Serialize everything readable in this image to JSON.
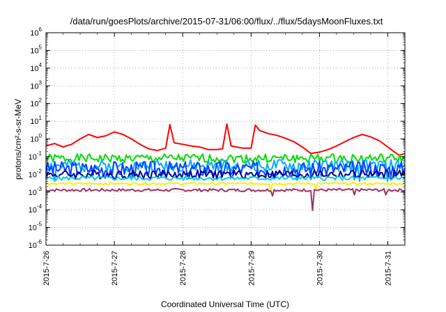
{
  "chart_data": {
    "type": "line",
    "title": "/data/run/goesPlots/archive/2015-07-31/06:00/flux/../flux/5daysMoonFluxes.txt",
    "xlabel": "Coordinated Universal Time (UTC)",
    "ylabel": "protons/cm²-s-sr-MeV",
    "y_scale": "log",
    "ylim": [
      1e-06,
      1000000.0
    ],
    "y_ticks": [
      {
        "base": "10",
        "exp": "-6",
        "value": 1e-06
      },
      {
        "base": "10",
        "exp": "-5",
        "value": 1e-05
      },
      {
        "base": "10",
        "exp": "-4",
        "value": 0.0001
      },
      {
        "base": "10",
        "exp": "-3",
        "value": 0.001
      },
      {
        "base": "10",
        "exp": "-2",
        "value": 0.01
      },
      {
        "base": "10",
        "exp": "-1",
        "value": 0.1
      },
      {
        "base": "10",
        "exp": "0",
        "value": 1
      },
      {
        "base": "10",
        "exp": "1",
        "value": 10
      },
      {
        "base": "10",
        "exp": "2",
        "value": 100
      },
      {
        "base": "10",
        "exp": "3",
        "value": 1000
      },
      {
        "base": "10",
        "exp": "4",
        "value": 10000
      },
      {
        "base": "10",
        "exp": "5",
        "value": 100000
      },
      {
        "base": "10",
        "exp": "6",
        "value": 1000000
      }
    ],
    "xlim": [
      "2015-07-26T00:00",
      "2015-07-31T06:00"
    ],
    "x_ticks": [
      {
        "label": "2015-7-26",
        "value": "2015-07-26T00:00"
      },
      {
        "label": "2015-7-27",
        "value": "2015-07-27T00:00"
      },
      {
        "label": "2015-7-28",
        "value": "2015-07-28T00:00"
      },
      {
        "label": "2015-7-29",
        "value": "2015-07-29T00:00"
      },
      {
        "label": "2015-7-30",
        "value": "2015-07-30T00:00"
      },
      {
        "label": "2015-7-31",
        "value": "2015-07-31T00:00"
      }
    ],
    "grid": true,
    "series": [
      {
        "color": "#ff0000",
        "points": [
          [
            "2015-07-26T00:00",
            0.4
          ],
          [
            "2015-07-26T03:00",
            0.55
          ],
          [
            "2015-07-26T06:00",
            0.35
          ],
          [
            "2015-07-26T09:00",
            0.5
          ],
          [
            "2015-07-26T12:00",
            1.0
          ],
          [
            "2015-07-26T15:00",
            1.8
          ],
          [
            "2015-07-26T18:00",
            1.2
          ],
          [
            "2015-07-26T21:00",
            1.5
          ],
          [
            "2015-07-27T00:00",
            2.5
          ],
          [
            "2015-07-27T03:00",
            1.8
          ],
          [
            "2015-07-27T06:00",
            1.0
          ],
          [
            "2015-07-27T09:00",
            0.5
          ],
          [
            "2015-07-27T12:00",
            0.28
          ],
          [
            "2015-07-27T15:00",
            0.22
          ],
          [
            "2015-07-27T18:00",
            0.3
          ],
          [
            "2015-07-27T19:30",
            6.5
          ],
          [
            "2015-07-27T21:00",
            0.6
          ],
          [
            "2015-07-28T00:00",
            0.5
          ],
          [
            "2015-07-28T03:00",
            0.4
          ],
          [
            "2015-07-28T06:00",
            0.35
          ],
          [
            "2015-07-28T09:00",
            0.25
          ],
          [
            "2015-07-28T12:00",
            0.25
          ],
          [
            "2015-07-28T14:00",
            0.28
          ],
          [
            "2015-07-28T15:30",
            7.0
          ],
          [
            "2015-07-28T17:00",
            0.4
          ],
          [
            "2015-07-28T19:00",
            0.35
          ],
          [
            "2015-07-28T21:00",
            0.3
          ],
          [
            "2015-07-29T00:00",
            0.3
          ],
          [
            "2015-07-29T01:30",
            6.0
          ],
          [
            "2015-07-29T03:00",
            3.0
          ],
          [
            "2015-07-29T06:00",
            2.0
          ],
          [
            "2015-07-29T09:00",
            1.6
          ],
          [
            "2015-07-29T12:00",
            1.1
          ],
          [
            "2015-07-29T15:00",
            0.7
          ],
          [
            "2015-07-29T18:00",
            0.35
          ],
          [
            "2015-07-29T21:00",
            0.15
          ],
          [
            "2015-07-30T00:00",
            0.18
          ],
          [
            "2015-07-30T03:00",
            0.25
          ],
          [
            "2015-07-30T06:00",
            0.4
          ],
          [
            "2015-07-30T09:00",
            0.7
          ],
          [
            "2015-07-30T12:00",
            1.2
          ],
          [
            "2015-07-30T15:00",
            1.8
          ],
          [
            "2015-07-30T18:00",
            1.3
          ],
          [
            "2015-07-30T21:00",
            0.8
          ],
          [
            "2015-07-31T00:00",
            0.35
          ],
          [
            "2015-07-31T02:00",
            0.2
          ],
          [
            "2015-07-31T04:00",
            0.12
          ],
          [
            "2015-07-31T06:00",
            0.15
          ]
        ]
      },
      {
        "color": "#00dd00",
        "base": 0.08,
        "amplitude": 0.25,
        "seed": 1,
        "dips": []
      },
      {
        "color": "#00aaff",
        "base": 0.03,
        "amplitude": 0.35,
        "seed": 2,
        "dips": [
          [
            "2015-07-26T03:00",
            0.004
          ],
          [
            "2015-07-27T06:00",
            0.005
          ],
          [
            "2015-07-29T16:00",
            0.005
          ],
          [
            "2015-07-30T14:00",
            0.004
          ],
          [
            "2015-07-31T00:00",
            0.004
          ]
        ]
      },
      {
        "color": "#0044ff",
        "base": 0.02,
        "amplitude": 0.45,
        "seed": 3,
        "dips": [
          [
            "2015-07-27T18:00",
            0.006
          ],
          [
            "2015-07-29T08:00",
            0.006
          ],
          [
            "2015-07-30T12:00",
            0.005
          ]
        ]
      },
      {
        "color": "#000099",
        "base": 0.01,
        "amplitude": 0.25,
        "seed": 4,
        "dips": []
      },
      {
        "color": "#00ccdd",
        "base": 0.006,
        "amplitude": 0.12,
        "seed": 5,
        "dips": []
      },
      {
        "color": "#ffee00",
        "base": 0.003,
        "amplitude": 0.06,
        "seed": 6,
        "dips": [
          [
            "2015-07-29T07:00",
            0.0012
          ],
          [
            "2015-07-29T23:00",
            0.0015
          ]
        ]
      },
      {
        "color": "#993366",
        "base": 0.0013,
        "amplitude": 0.08,
        "seed": 7,
        "dips": [
          [
            "2015-07-29T07:30",
            0.0006
          ],
          [
            "2015-07-29T21:30",
            9e-05
          ],
          [
            "2015-07-30T12:00",
            0.0007
          ],
          [
            "2015-07-30T23:00",
            0.0007
          ]
        ]
      }
    ]
  }
}
